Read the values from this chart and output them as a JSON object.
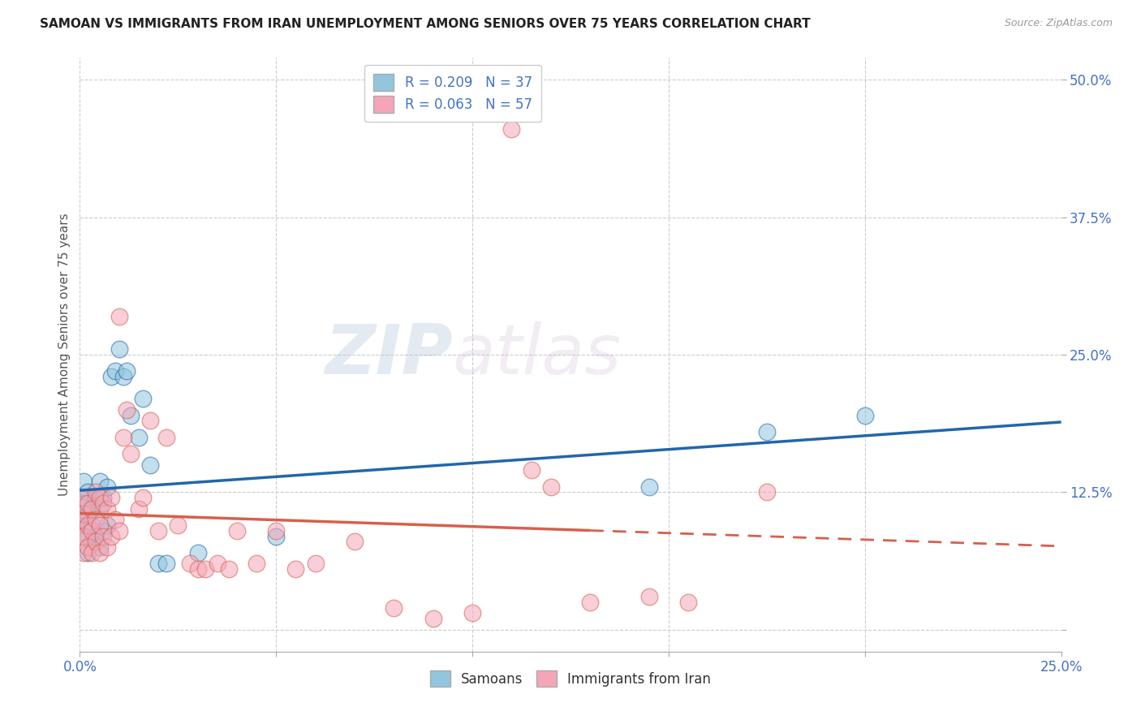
{
  "title": "SAMOAN VS IMMIGRANTS FROM IRAN UNEMPLOYMENT AMONG SENIORS OVER 75 YEARS CORRELATION CHART",
  "source": "Source: ZipAtlas.com",
  "ylabel": "Unemployment Among Seniors over 75 years",
  "xlim": [
    0.0,
    0.25
  ],
  "ylim": [
    -0.02,
    0.52
  ],
  "xticks": [
    0.0,
    0.05,
    0.1,
    0.15,
    0.2,
    0.25
  ],
  "yticks": [
    0.0,
    0.125,
    0.25,
    0.375,
    0.5
  ],
  "xticklabels": [
    "0.0%",
    "",
    "",
    "",
    "",
    "25.0%"
  ],
  "yticklabels": [
    "",
    "12.5%",
    "25.0%",
    "37.5%",
    "50.0%"
  ],
  "legend_r1": "R = 0.209",
  "legend_n1": "N = 37",
  "legend_r2": "R = 0.063",
  "legend_n2": "N = 57",
  "color_blue": "#92c5de",
  "color_pink": "#f4a6b8",
  "color_blue_line": "#2166ac",
  "color_pink_line": "#d6604d",
  "color_text_blue": "#4472C4",
  "background_color": "#ffffff",
  "watermark_zip": "ZIP",
  "watermark_atlas": "atlas",
  "samoans_x": [
    0.0,
    0.0,
    0.001,
    0.001,
    0.001,
    0.002,
    0.002,
    0.002,
    0.002,
    0.003,
    0.003,
    0.003,
    0.004,
    0.004,
    0.005,
    0.005,
    0.005,
    0.006,
    0.006,
    0.007,
    0.007,
    0.008,
    0.009,
    0.01,
    0.011,
    0.012,
    0.013,
    0.015,
    0.016,
    0.018,
    0.02,
    0.022,
    0.03,
    0.145,
    0.175,
    0.2,
    0.05
  ],
  "samoans_y": [
    0.12,
    0.1,
    0.135,
    0.115,
    0.095,
    0.125,
    0.105,
    0.085,
    0.07,
    0.11,
    0.095,
    0.08,
    0.12,
    0.085,
    0.135,
    0.11,
    0.075,
    0.12,
    0.09,
    0.13,
    0.095,
    0.23,
    0.235,
    0.255,
    0.23,
    0.235,
    0.195,
    0.175,
    0.21,
    0.15,
    0.06,
    0.06,
    0.07,
    0.13,
    0.18,
    0.195,
    0.085
  ],
  "iran_x": [
    0.0,
    0.0,
    0.001,
    0.001,
    0.001,
    0.001,
    0.002,
    0.002,
    0.002,
    0.003,
    0.003,
    0.003,
    0.004,
    0.004,
    0.004,
    0.005,
    0.005,
    0.005,
    0.006,
    0.006,
    0.007,
    0.007,
    0.008,
    0.008,
    0.009,
    0.01,
    0.01,
    0.011,
    0.012,
    0.013,
    0.015,
    0.016,
    0.018,
    0.02,
    0.022,
    0.025,
    0.028,
    0.03,
    0.032,
    0.035,
    0.038,
    0.04,
    0.045,
    0.05,
    0.055,
    0.06,
    0.07,
    0.08,
    0.09,
    0.1,
    0.11,
    0.115,
    0.12,
    0.13,
    0.145,
    0.155,
    0.175
  ],
  "iran_y": [
    0.1,
    0.085,
    0.12,
    0.105,
    0.085,
    0.07,
    0.115,
    0.095,
    0.075,
    0.11,
    0.09,
    0.07,
    0.125,
    0.1,
    0.08,
    0.12,
    0.095,
    0.07,
    0.115,
    0.085,
    0.11,
    0.075,
    0.12,
    0.085,
    0.1,
    0.285,
    0.09,
    0.175,
    0.2,
    0.16,
    0.11,
    0.12,
    0.19,
    0.09,
    0.175,
    0.095,
    0.06,
    0.055,
    0.055,
    0.06,
    0.055,
    0.09,
    0.06,
    0.09,
    0.055,
    0.06,
    0.08,
    0.02,
    0.01,
    0.015,
    0.455,
    0.145,
    0.13,
    0.025,
    0.03,
    0.025,
    0.125
  ]
}
